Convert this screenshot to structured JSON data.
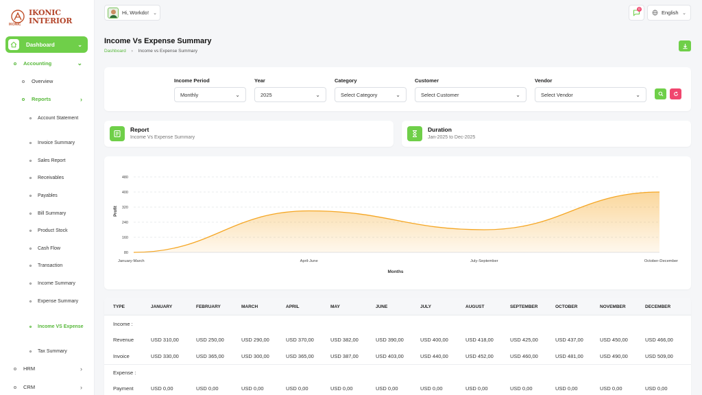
{
  "brand": {
    "name_line1": "IKONIC",
    "name_line2": "INTERIOR",
    "mark_text": "IKONIC"
  },
  "sidebar": {
    "dashboard": "Dashboard",
    "accounting": "Accounting",
    "overview": "Overview",
    "reports": "Reports",
    "report_items": [
      "Account Statement",
      "Invoice Summary",
      "Sales Report",
      "Receivables",
      "Payables",
      "Bill Summary",
      "Product Stock",
      "Cash Flow",
      "Transaction",
      "Income Summary",
      "Expense Summary",
      "Income VS Expense",
      "Tax Summary"
    ],
    "active_report": "Income VS Expense",
    "hrm": "HRM",
    "crm": "CRM"
  },
  "topbar": {
    "greeting": "Hi, Workdo!",
    "notification_count": "0",
    "language": "English"
  },
  "page": {
    "title": "Income Vs Expense Summary",
    "breadcrumb_home": "Dashboard",
    "breadcrumb_current": "Income vs Expense Summary"
  },
  "filters": {
    "income_period_label": "Income Period",
    "income_period_value": "Monthly",
    "year_label": "Year",
    "year_value": "2025",
    "category_label": "Category",
    "category_value": "Select Category",
    "customer_label": "Customer",
    "customer_value": "Select Customer",
    "vendor_label": "Vendor",
    "vendor_value": "Select Vendor"
  },
  "report_card": {
    "title": "Report",
    "subtitle": "Income Vs Expense Summary"
  },
  "duration_card": {
    "title": "Duration",
    "subtitle": "Jan-2025 to Dec-2025"
  },
  "colors": {
    "accent": "#6fcf49",
    "danger": "#f0466e",
    "chart_line": "#f5a623"
  },
  "chart_data": {
    "type": "area",
    "categories": [
      "January-March",
      "April-June",
      "July-September",
      "October-December"
    ],
    "values": [
      80,
      300,
      200,
      400
    ],
    "xlabel": "Months",
    "ylabel": "Profit",
    "ylim": [
      80,
      480
    ],
    "yticks": [
      80,
      160,
      240,
      320,
      400,
      480
    ],
    "grid": true
  },
  "table": {
    "columns": [
      "TYPE",
      "JANUARY",
      "FEBRUARY",
      "MARCH",
      "APRIL",
      "MAY",
      "JUNE",
      "JULY",
      "AUGUST",
      "SEPTEMBER",
      "OCTOBER",
      "NOVEMBER",
      "DECEMBER"
    ],
    "income_header": "Income :",
    "expense_header": "Expense :",
    "rows": [
      {
        "label": "Revenue",
        "values": [
          "USD 310,00",
          "USD 250,00",
          "USD 290,00",
          "USD 370,00",
          "USD 382,00",
          "USD 390,00",
          "USD 400,00",
          "USD 418,00",
          "USD 425,00",
          "USD 437,00",
          "USD 450,00",
          "USD 466,00"
        ]
      },
      {
        "label": "Invoice",
        "values": [
          "USD 330,00",
          "USD 365,00",
          "USD 300,00",
          "USD 365,00",
          "USD 387,00",
          "USD 403,00",
          "USD 440,00",
          "USD 452,00",
          "USD 460,00",
          "USD 481,00",
          "USD 490,00",
          "USD 509,00"
        ]
      },
      {
        "label": "Payment",
        "values": [
          "USD 0,00",
          "USD 0,00",
          "USD 0,00",
          "USD 0,00",
          "USD 0,00",
          "USD 0,00",
          "USD 0,00",
          "USD 0,00",
          "USD 0,00",
          "USD 0,00",
          "USD 0,00",
          "USD 0,00"
        ]
      }
    ]
  }
}
